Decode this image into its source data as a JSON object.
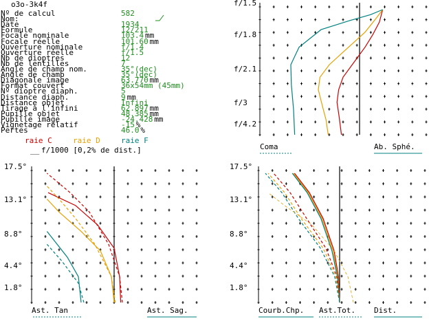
{
  "title": "o3o-3k4f",
  "fields": [
    {
      "label": "Nº de calcul",
      "value": "582",
      "unit": ""
    },
    {
      "label": "Nom:",
      "value": "",
      "unit": ""
    },
    {
      "label": "Date",
      "value": "1934",
      "unit": ""
    },
    {
      "label": "Formule",
      "value": "12/211",
      "unit": ""
    },
    {
      "label": "Focale nominale",
      "value": "103.4",
      "unit": "mm"
    },
    {
      "label": "Focale réelle",
      "value": "101.60",
      "unit": "mm"
    },
    {
      "label": "Ouverture nominale",
      "value": "f/1.4",
      "unit": ""
    },
    {
      "label": "Ouverture réelle",
      "value": "f/1.5",
      "unit": ""
    },
    {
      "label": "Nb de dioptres",
      "value": "12",
      "unit": ""
    },
    {
      "label": "Nb de lentilles",
      "value": "7",
      "unit": ""
    },
    {
      "label": "Angle de champ nom.",
      "value": "35°(dec)",
      "unit": ""
    },
    {
      "label": "Angle de champ",
      "value": "35°(dec)",
      "unit": ""
    },
    {
      "label": "Diagonale image",
      "value": "63.770",
      "unit": "mm"
    },
    {
      "label": "Format couvert",
      "value": "36x54mm (45mm)",
      "unit": ""
    },
    {
      "label": "Nº dioptre diaph.",
      "value": "5",
      "unit": ""
    },
    {
      "label": "Distance diaph.",
      "value": "9",
      "unit": "mm"
    },
    {
      "label": "Distance objet",
      "value": "Infini",
      "unit": ""
    },
    {
      "label": "Tirage à l'infini",
      "value": "62.897",
      "unit": "mm"
    },
    {
      "label": "Pupille objet",
      "value": "48.385",
      "unit": "mm"
    },
    {
      "label": "Pupille image",
      "value": "-24.428",
      "unit": "mm"
    },
    {
      "label": "Vignetage relatif",
      "value": "-15",
      "unit": "%"
    },
    {
      "label": "Pertes",
      "value": "46.0",
      "unit": "%"
    }
  ],
  "scale_note": "f/1000 [0,2% de dist.]",
  "legend": [
    {
      "text": "raie C",
      "color": "#cc0000"
    },
    {
      "text": "raie D",
      "color": "#e8a000"
    },
    {
      "text": "raie F",
      "color": "#008080"
    }
  ],
  "colors": {
    "c": "#cc0000",
    "d": "#e8a000",
    "f": "#008080",
    "value": "#1f8f1f"
  },
  "chart_data": [
    {
      "type": "line",
      "panel": "spherical",
      "yticks": [
        "f/1.5",
        "f/1.8",
        "f/2.1",
        "f/3",
        "f/4.2"
      ],
      "labels": {
        "left": "Coma",
        "right": "Ab. Sphé."
      },
      "series": [
        {
          "line": "C",
          "points": [
            [
              0.42,
              1.0
            ],
            [
              0.36,
              0.9
            ],
            [
              0.24,
              0.8
            ],
            [
              0.1,
              0.7
            ],
            [
              -0.15,
              0.55
            ],
            [
              -0.3,
              0.46
            ],
            [
              -0.38,
              0.36
            ],
            [
              -0.41,
              0.26
            ],
            [
              -0.37,
              0.14
            ],
            [
              -0.33,
              0.0
            ]
          ]
        },
        {
          "line": "D",
          "points": [
            [
              0.42,
              1.0
            ],
            [
              0.3,
              0.93
            ],
            [
              0.1,
              0.82
            ],
            [
              -0.2,
              0.7
            ],
            [
              -0.55,
              0.56
            ],
            [
              -0.72,
              0.46
            ],
            [
              -0.75,
              0.36
            ],
            [
              -0.67,
              0.22
            ],
            [
              -0.61,
              0.12
            ],
            [
              -0.57,
              0.0
            ]
          ]
        },
        {
          "line": "F",
          "points": [
            [
              0.42,
              1.0
            ],
            [
              0.2,
              0.96
            ],
            [
              -0.2,
              0.91
            ],
            [
              -0.7,
              0.84
            ],
            [
              -1.1,
              0.7
            ],
            [
              -1.25,
              0.56
            ],
            [
              -1.24,
              0.4
            ],
            [
              -1.2,
              0.2
            ],
            [
              -1.18,
              0.0
            ]
          ]
        }
      ]
    },
    {
      "type": "line",
      "panel": "astigmatism",
      "yticks": [
        "17.5°",
        "13.1°",
        "8.8°",
        "4.4°",
        "1.8°"
      ],
      "labels": {
        "left": "Ast. Tan",
        "right": "Ast. Sag."
      },
      "series": [
        {
          "line": "C",
          "style": "solid",
          "points": [
            [
              0.12,
              0.0
            ],
            [
              0.1,
              0.2
            ],
            [
              0.0,
              0.42
            ],
            [
              -0.3,
              0.6
            ],
            [
              -0.7,
              0.75
            ],
            [
              -1.2,
              0.85
            ]
          ]
        },
        {
          "line": "D",
          "style": "solid",
          "points": [
            [
              0.0,
              0.0
            ],
            [
              -0.05,
              0.2
            ],
            [
              -0.25,
              0.4
            ],
            [
              -0.6,
              0.55
            ],
            [
              -1.0,
              0.7
            ],
            [
              -1.22,
              0.8
            ]
          ]
        },
        {
          "line": "F",
          "style": "solid",
          "points": [
            [
              -0.6,
              0.0
            ],
            [
              -0.65,
              0.2
            ],
            [
              -0.85,
              0.35
            ],
            [
              -1.22,
              0.55
            ]
          ]
        },
        {
          "line": "C",
          "style": "dashed",
          "points": [
            [
              0.15,
              0.0
            ],
            [
              0.1,
              0.2
            ],
            [
              -0.1,
              0.45
            ],
            [
              -0.45,
              0.7
            ],
            [
              -0.8,
              0.85
            ],
            [
              -1.22,
              1.0
            ]
          ]
        },
        {
          "line": "D",
          "style": "dashed",
          "points": [
            [
              0.02,
              0.0
            ],
            [
              -0.05,
              0.2
            ],
            [
              -0.35,
              0.45
            ],
            [
              -0.7,
              0.65
            ],
            [
              -1.0,
              0.8
            ],
            [
              -1.22,
              0.9
            ]
          ]
        },
        {
          "line": "F",
          "style": "dashed",
          "points": [
            [
              -0.55,
              0.0
            ],
            [
              -0.65,
              0.15
            ],
            [
              -0.95,
              0.32
            ],
            [
              -1.22,
              0.45
            ]
          ]
        }
      ]
    },
    {
      "type": "line",
      "panel": "field",
      "yticks": [
        "17.5°",
        "13.1°",
        "8.8°",
        "4.4°",
        "1.8°"
      ],
      "labels": {
        "left": "Courb.Chp.",
        "middle": "Ast.Tot.",
        "right": "Dist."
      },
      "series": [
        {
          "line": "C",
          "style": "solid",
          "points": [
            [
              0.0,
              0.0
            ],
            [
              -0.02,
              0.2
            ],
            [
              -0.1,
              0.4
            ],
            [
              -0.3,
              0.65
            ],
            [
              -0.55,
              0.85
            ],
            [
              -0.82,
              1.0
            ]
          ]
        },
        {
          "line": "D",
          "style": "solid",
          "points": [
            [
              0.0,
              0.0
            ],
            [
              -0.03,
              0.2
            ],
            [
              -0.12,
              0.4
            ],
            [
              -0.32,
              0.65
            ],
            [
              -0.57,
              0.85
            ],
            [
              -0.84,
              1.0
            ]
          ]
        },
        {
          "line": "F",
          "style": "solid",
          "points": [
            [
              0.0,
              0.0
            ],
            [
              -0.04,
              0.2
            ],
            [
              -0.14,
              0.4
            ],
            [
              -0.34,
              0.65
            ],
            [
              -0.59,
              0.85
            ],
            [
              -0.86,
              1.0
            ]
          ]
        },
        {
          "line": "C",
          "style": "dashed",
          "points": [
            [
              0.0,
              0.0
            ],
            [
              -0.05,
              0.2
            ],
            [
              -0.25,
              0.42
            ],
            [
              -0.6,
              0.65
            ],
            [
              -0.9,
              0.85
            ],
            [
              -1.2,
              1.0
            ]
          ]
        },
        {
          "line": "D",
          "style": "dashed",
          "points": [
            [
              0.0,
              0.0
            ],
            [
              -0.07,
              0.2
            ],
            [
              -0.3,
              0.42
            ],
            [
              -0.7,
              0.65
            ],
            [
              -1.0,
              0.85
            ],
            [
              -1.3,
              1.0
            ]
          ]
        },
        {
          "line": "F",
          "style": "dashed",
          "points": [
            [
              0.0,
              0.0
            ],
            [
              -0.09,
              0.2
            ],
            [
              -0.35,
              0.42
            ],
            [
              -0.75,
              0.65
            ],
            [
              -1.05,
              0.85
            ],
            [
              -1.35,
              1.0
            ]
          ]
        },
        {
          "line": "D",
          "style": "thin",
          "points": [
            [
              0.25,
              0.0
            ],
            [
              0.15,
              0.2
            ],
            [
              -0.1,
              0.4
            ],
            [
              -0.5,
              0.6
            ],
            [
              -1.0,
              0.75
            ],
            [
              -1.3,
              0.85
            ]
          ]
        }
      ]
    }
  ]
}
